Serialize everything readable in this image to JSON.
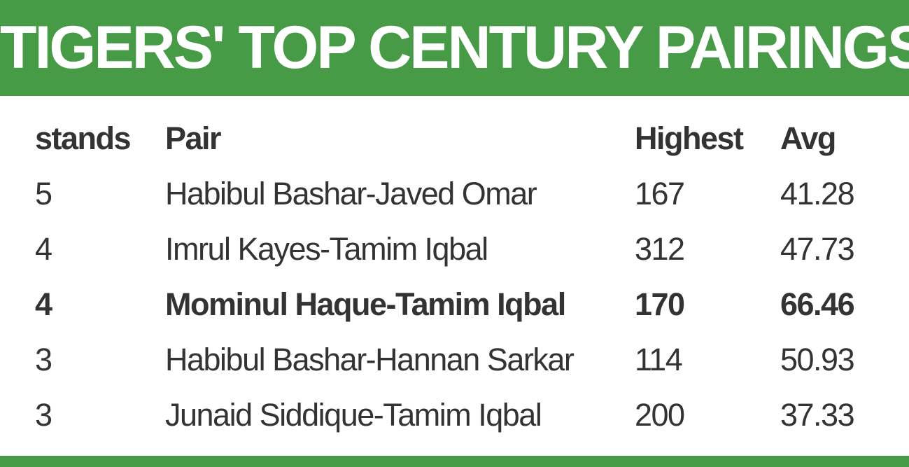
{
  "title": "TIGERS' TOP CENTURY PAIRINGS",
  "colors": {
    "header_bg": "#479a46",
    "text": "#333333",
    "title_text": "#ffffff"
  },
  "table": {
    "columns": [
      "stands",
      "Pair",
      "Highest",
      "Avg"
    ],
    "rows": [
      {
        "stands": "5",
        "pair": "Habibul Bashar-Javed Omar",
        "highest": "167",
        "avg": "41.28",
        "highlight": false
      },
      {
        "stands": "4",
        "pair": "Imrul Kayes-Tamim Iqbal",
        "highest": "312",
        "avg": "47.73",
        "highlight": false
      },
      {
        "stands": "4",
        "pair": "Mominul Haque-Tamim Iqbal",
        "highest": "170",
        "avg": "66.46",
        "highlight": true
      },
      {
        "stands": "3",
        "pair": "Habibul Bashar-Hannan Sarkar",
        "highest": "114",
        "avg": "50.93",
        "highlight": false
      },
      {
        "stands": "3",
        "pair": "Junaid Siddique-Tamim Iqbal",
        "highest": "200",
        "avg": "37.33",
        "highlight": false
      }
    ]
  }
}
